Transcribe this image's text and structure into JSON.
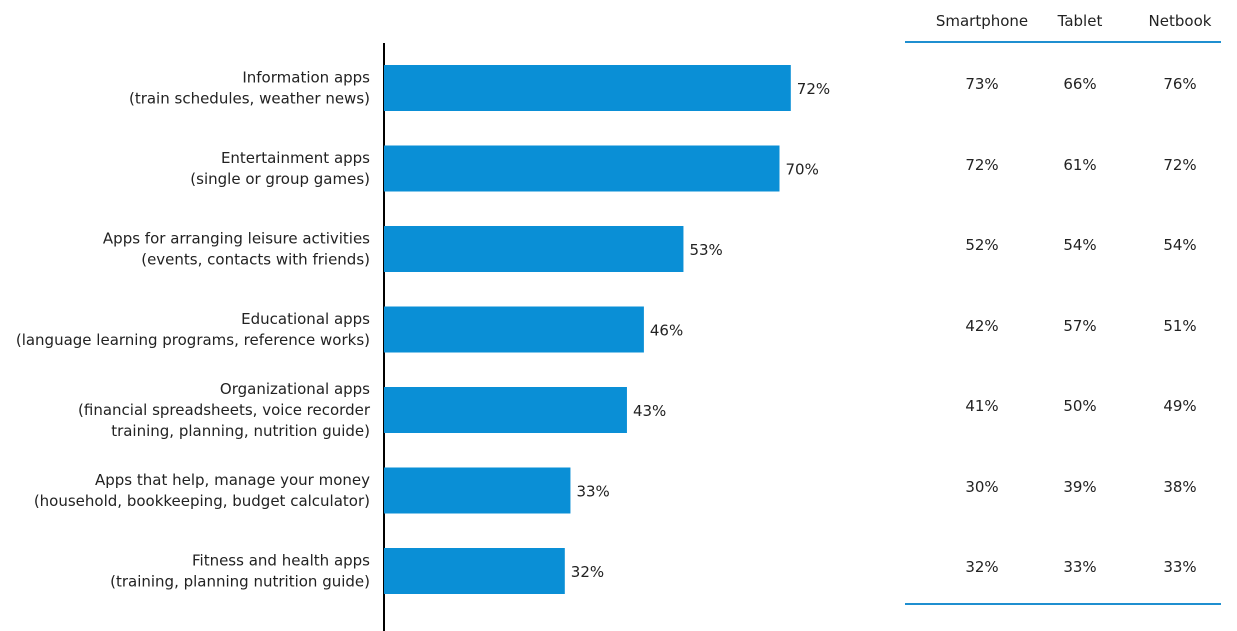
{
  "colors": {
    "bar": "#0a8fd6",
    "axis": "#000000",
    "rule": "#1f8fd0",
    "text": "#222222"
  },
  "chart_data": {
    "type": "bar",
    "orientation": "horizontal",
    "categories": [
      [
        "Information apps",
        "(train schedules, weather news)"
      ],
      [
        "Entertainment apps",
        "(single or group games)"
      ],
      [
        "Apps for arranging leisure activities",
        "(events, contacts with friends)"
      ],
      [
        "Educational apps",
        "(language learning programs, reference works)"
      ],
      [
        "Organizational apps",
        "(financial spreadsheets, voice recorder",
        "training, planning, nutrition guide)"
      ],
      [
        "Apps that help, manage your money",
        "(household, bookkeeping, budget calculator)"
      ],
      [
        "Fitness and health apps",
        "(training, planning nutrition guide)"
      ]
    ],
    "values": [
      72,
      70,
      53,
      46,
      43,
      33,
      32
    ],
    "value_labels": [
      "72%",
      "70%",
      "53%",
      "46%",
      "43%",
      "33%",
      "32%"
    ],
    "xlim": [
      0,
      100
    ],
    "grid": false,
    "legend": "none"
  },
  "table": {
    "columns": [
      "Smartphone",
      "Tablet",
      "Netbook"
    ],
    "rows": [
      [
        "73%",
        "66%",
        "76%"
      ],
      [
        "72%",
        "61%",
        "72%"
      ],
      [
        "52%",
        "54%",
        "54%"
      ],
      [
        "42%",
        "57%",
        "51%"
      ],
      [
        "41%",
        "50%",
        "49%"
      ],
      [
        "30%",
        "39%",
        "38%"
      ],
      [
        "32%",
        "33%",
        "33%"
      ]
    ]
  }
}
